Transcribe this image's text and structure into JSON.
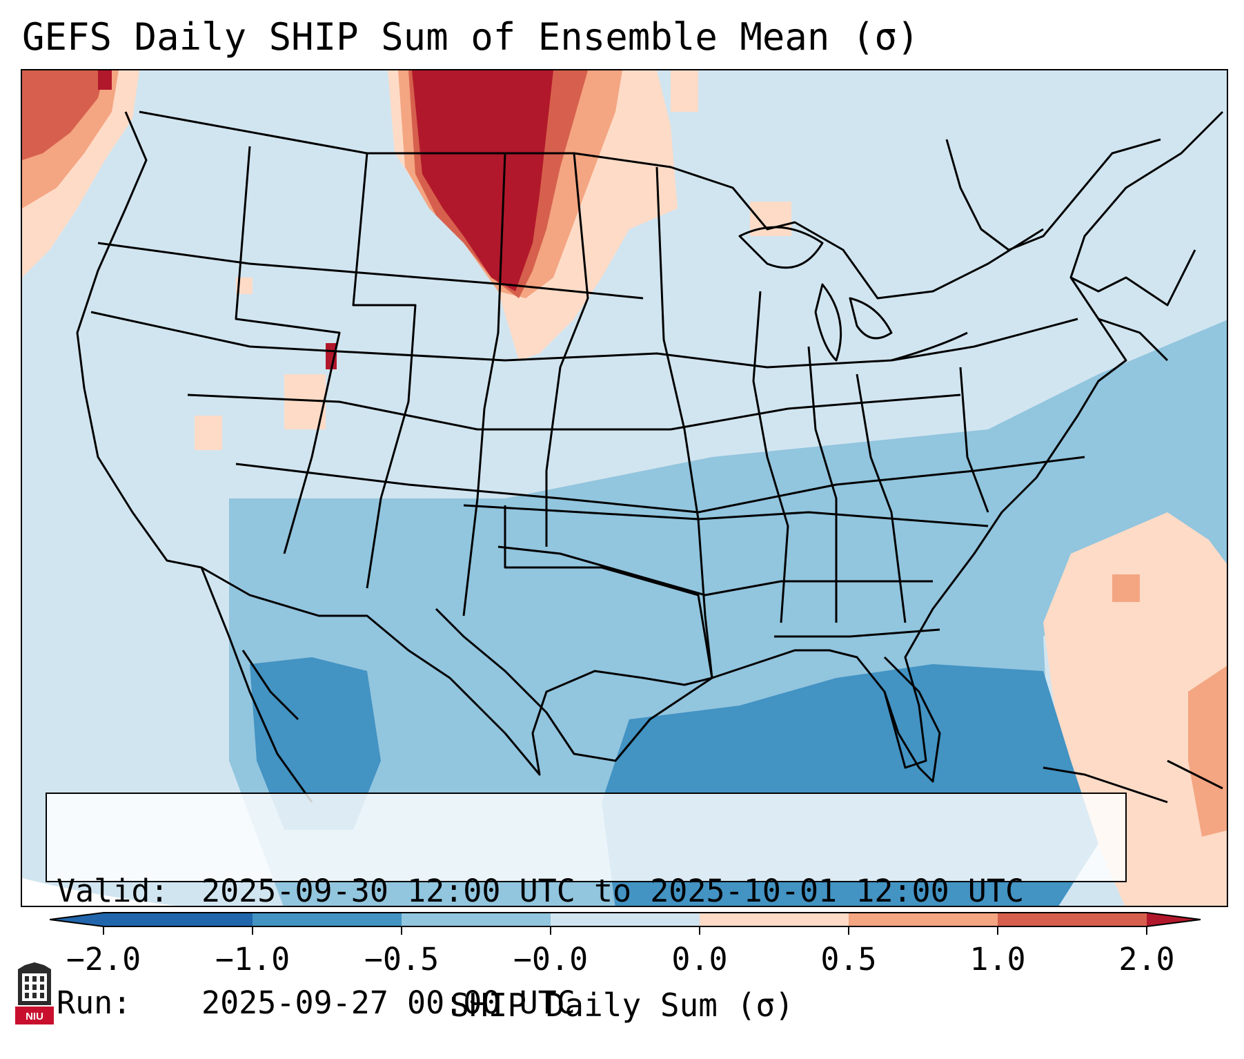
{
  "title": "GEFS Daily SHIP Sum of Ensemble Mean (σ)",
  "info": {
    "valid_label": "Valid:",
    "valid_value": "2025-09-30 12:00 UTC to 2025-10-01 12:00 UTC",
    "run_label": "Run:",
    "run_value": "2025-09-27 00:00 UTC"
  },
  "colorbar": {
    "label": "SHIP Daily Sum (σ)",
    "ticks": [
      "−2.0",
      "−1.0",
      "−0.5",
      "−0.0",
      "0.0",
      "0.5",
      "1.0",
      "2.0"
    ],
    "colors": [
      "#2166ac",
      "#4393c3",
      "#92c5de",
      "#d1e5f0",
      "#f7f7f7",
      "#fddbc7",
      "#f4a582",
      "#d6604d",
      "#b2182b"
    ]
  },
  "map": {
    "region": "Contiguous United States",
    "variable": "SHIP daily sum anomaly",
    "hotspot": "Montana / North Dakota"
  },
  "logo": {
    "text": "NIU"
  }
}
